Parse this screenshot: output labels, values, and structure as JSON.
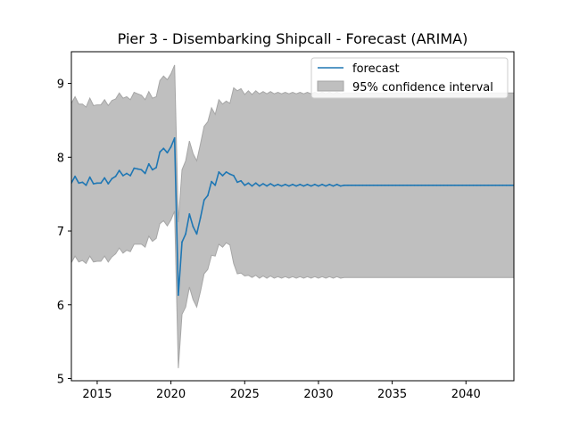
{
  "chart_data": {
    "type": "line",
    "title": "Pier 3 - Disembarking Shipcall - Forecast (ARIMA)",
    "xlabel": "",
    "ylabel": "",
    "xlim": [
      2013.25,
      2043.25
    ],
    "ylim": [
      4.97,
      9.43
    ],
    "x_ticks": [
      2015,
      2020,
      2025,
      2030,
      2035,
      2040
    ],
    "y_ticks": [
      5,
      6,
      7,
      8,
      9
    ],
    "grid": false,
    "legend_position": "top-right",
    "legend": [
      "forecast",
      "95% confidence interval"
    ],
    "colors": {
      "forecast": "#1f77b4",
      "interval": "#bfbfbf",
      "interval_edge": "#a6a6a6"
    },
    "x": [
      2013.25,
      2013.5,
      2013.75,
      2014,
      2014.25,
      2014.5,
      2014.75,
      2015,
      2015.25,
      2015.5,
      2015.75,
      2016,
      2016.25,
      2016.5,
      2016.75,
      2017,
      2017.25,
      2017.5,
      2017.75,
      2018,
      2018.25,
      2018.5,
      2018.75,
      2019,
      2019.25,
      2019.5,
      2019.75,
      2020,
      2020.25,
      2020.5,
      2020.75,
      2021,
      2021.25,
      2021.5,
      2021.75,
      2022,
      2022.25,
      2022.5,
      2022.75,
      2023,
      2023.25,
      2023.5,
      2023.75,
      2024,
      2024.25,
      2024.5,
      2024.75,
      2025,
      2025.25,
      2025.5,
      2025.75,
      2026,
      2026.25,
      2026.5,
      2026.75,
      2027,
      2027.25,
      2027.5,
      2027.75,
      2028,
      2028.25,
      2028.5,
      2028.75,
      2029,
      2029.25,
      2029.5,
      2029.75,
      2030,
      2030.25,
      2030.5,
      2030.75,
      2031,
      2031.25,
      2031.5,
      2031.75,
      2032,
      2032.25,
      2032.5,
      2032.75,
      2033,
      2033.25,
      2033.5,
      2033.75,
      2034,
      2034.25,
      2034.5,
      2034.75,
      2035,
      2035.25,
      2035.5,
      2035.75,
      2036,
      2036.25,
      2036.5,
      2036.75,
      2037,
      2037.25,
      2037.5,
      2037.75,
      2038,
      2038.25,
      2038.5,
      2038.75,
      2039,
      2039.25,
      2039.5,
      2039.75,
      2040,
      2040.25,
      2040.5,
      2040.75,
      2041,
      2041.25,
      2041.5,
      2041.75,
      2042,
      2042.25,
      2042.5,
      2042.75,
      2043,
      2043.25
    ],
    "series": [
      {
        "name": "forecast",
        "values": [
          7.65,
          7.74,
          7.65,
          7.66,
          7.62,
          7.73,
          7.64,
          7.65,
          7.65,
          7.72,
          7.64,
          7.71,
          7.74,
          7.82,
          7.75,
          7.78,
          7.75,
          7.85,
          7.84,
          7.83,
          7.78,
          7.91,
          7.83,
          7.86,
          8.07,
          8.12,
          8.06,
          8.14,
          8.26,
          6.13,
          6.85,
          6.96,
          7.23,
          7.06,
          6.96,
          7.18,
          7.42,
          7.48,
          7.67,
          7.62,
          7.8,
          7.75,
          7.8,
          7.77,
          7.75,
          7.66,
          7.68,
          7.62,
          7.65,
          7.61,
          7.65,
          7.61,
          7.64,
          7.61,
          7.64,
          7.61,
          7.63,
          7.61,
          7.63,
          7.61,
          7.63,
          7.61,
          7.63,
          7.61,
          7.63,
          7.61,
          7.63,
          7.61,
          7.63,
          7.61,
          7.63,
          7.61,
          7.63,
          7.61,
          7.62,
          7.62,
          7.62,
          7.62,
          7.62,
          7.62,
          7.62,
          7.62,
          7.62,
          7.62,
          7.62,
          7.62,
          7.62,
          7.62,
          7.62,
          7.62,
          7.62,
          7.62,
          7.62,
          7.62,
          7.62,
          7.62,
          7.62,
          7.62,
          7.62,
          7.62,
          7.62,
          7.62,
          7.62,
          7.62,
          7.62,
          7.62,
          7.62,
          7.62,
          7.62,
          7.62,
          7.62,
          7.62,
          7.62,
          7.62,
          7.62,
          7.62,
          7.62,
          7.62,
          7.62,
          7.62,
          7.62
        ]
      }
    ],
    "interval": {
      "name": "95% confidence interval",
      "lower": [
        6.57,
        6.66,
        6.58,
        6.6,
        6.56,
        6.66,
        6.58,
        6.59,
        6.59,
        6.66,
        6.58,
        6.65,
        6.69,
        6.77,
        6.7,
        6.74,
        6.72,
        6.82,
        6.82,
        6.82,
        6.78,
        6.93,
        6.86,
        6.9,
        7.1,
        7.14,
        7.07,
        7.15,
        7.27,
        5.14,
        5.87,
        5.97,
        6.24,
        6.07,
        5.97,
        6.18,
        6.42,
        6.48,
        6.67,
        6.66,
        6.82,
        6.78,
        6.84,
        6.81,
        6.56,
        6.42,
        6.43,
        6.39,
        6.4,
        6.37,
        6.4,
        6.36,
        6.39,
        6.36,
        6.39,
        6.36,
        6.38,
        6.36,
        6.38,
        6.36,
        6.38,
        6.36,
        6.38,
        6.36,
        6.38,
        6.36,
        6.38,
        6.36,
        6.38,
        6.36,
        6.38,
        6.36,
        6.38,
        6.36,
        6.37,
        6.37,
        6.37,
        6.37,
        6.37,
        6.37,
        6.37,
        6.37,
        6.37,
        6.37,
        6.37,
        6.37,
        6.37,
        6.37,
        6.37,
        6.37,
        6.37,
        6.37,
        6.37,
        6.37,
        6.37,
        6.37,
        6.37,
        6.37,
        6.37,
        6.37,
        6.37,
        6.37,
        6.37,
        6.37,
        6.37,
        6.37,
        6.37,
        6.37,
        6.37,
        6.37,
        6.37,
        6.37,
        6.37,
        6.37,
        6.37,
        6.37,
        6.37,
        6.37,
        6.37,
        6.37,
        6.37
      ],
      "upper": [
        8.73,
        8.82,
        8.72,
        8.72,
        8.68,
        8.8,
        8.7,
        8.71,
        8.71,
        8.78,
        8.7,
        8.77,
        8.79,
        8.87,
        8.8,
        8.82,
        8.78,
        8.88,
        8.86,
        8.84,
        8.78,
        8.89,
        8.8,
        8.82,
        9.04,
        9.1,
        9.05,
        9.13,
        9.25,
        7.12,
        7.83,
        7.95,
        8.22,
        8.05,
        7.95,
        8.18,
        8.42,
        8.48,
        8.67,
        8.58,
        8.78,
        8.72,
        8.76,
        8.73,
        8.94,
        8.9,
        8.93,
        8.85,
        8.9,
        8.85,
        8.9,
        8.86,
        8.89,
        8.86,
        8.89,
        8.86,
        8.88,
        8.86,
        8.88,
        8.86,
        8.88,
        8.86,
        8.88,
        8.86,
        8.88,
        8.86,
        8.88,
        8.86,
        8.88,
        8.86,
        8.88,
        8.86,
        8.88,
        8.86,
        8.87,
        8.87,
        8.87,
        8.87,
        8.87,
        8.87,
        8.87,
        8.87,
        8.87,
        8.87,
        8.87,
        8.87,
        8.87,
        8.87,
        8.87,
        8.87,
        8.87,
        8.87,
        8.87,
        8.87,
        8.87,
        8.87,
        8.87,
        8.87,
        8.87,
        8.87,
        8.87,
        8.87,
        8.87,
        8.87,
        8.87,
        8.87,
        8.87,
        8.87,
        8.87,
        8.87,
        8.87,
        8.87,
        8.87,
        8.87,
        8.87,
        8.87,
        8.87,
        8.87,
        8.87,
        8.87,
        8.87
      ]
    }
  }
}
